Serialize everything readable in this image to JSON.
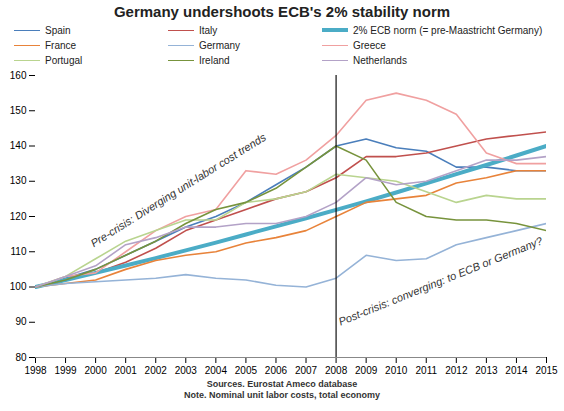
{
  "chart_data": {
    "type": "line",
    "title": "Germany undershoots ECB's 2% stability norm",
    "x": [
      1998,
      1999,
      2000,
      2001,
      2002,
      2003,
      2004,
      2005,
      2006,
      2007,
      2008,
      2009,
      2010,
      2011,
      2012,
      2013,
      2014,
      2015
    ],
    "xlim": [
      1998,
      2015
    ],
    "xticks": [
      1998,
      1999,
      2000,
      2001,
      2002,
      2003,
      2004,
      2005,
      2006,
      2007,
      2008,
      2009,
      2010,
      2011,
      2012,
      2013,
      2014,
      2015
    ],
    "ylim": [
      80,
      160
    ],
    "yticks": [
      80,
      90,
      100,
      110,
      120,
      130,
      140,
      150,
      160
    ],
    "grid": false,
    "legend": "top",
    "vertical_line_x": 2008,
    "annotations": [
      "Pre-crisis: Diverging unit-labor cost trends",
      "Post-crisis: converging: to ECB or Germany?"
    ],
    "sources": "Sources. Eurostat Ameco database",
    "note": "Note. Nominal unit labor costs, total economy",
    "series": [
      {
        "name": "Spain",
        "color": "#4a7ebb",
        "line_style": "solid",
        "values": [
          100,
          102.5,
          105,
          109,
          113,
          117,
          120,
          124,
          129,
          134,
          140,
          142,
          139.5,
          138.5,
          134,
          134,
          133,
          133
        ]
      },
      {
        "name": "Italy",
        "color": "#c0504d",
        "line_style": "solid",
        "values": [
          100,
          102,
          104,
          107,
          111,
          116,
          119,
          122,
          125,
          127,
          131,
          137,
          137,
          138,
          140,
          142,
          143,
          144
        ]
      },
      {
        "name": "2% ECB norm (= pre-Maastricht Germany)",
        "color": "#4bacc6",
        "line_style": "thick",
        "values": [
          100,
          102,
          104,
          106.1,
          108.2,
          110.4,
          112.6,
          114.9,
          117.2,
          119.5,
          121.9,
          124.3,
          126.8,
          129.4,
          132,
          134.6,
          137.3,
          140
        ]
      },
      {
        "name": "France",
        "color": "#e8833a",
        "line_style": "solid",
        "values": [
          100,
          101,
          102,
          105,
          107.5,
          109,
          110,
          112.5,
          114,
          116,
          120,
          124,
          125,
          126,
          129.5,
          131,
          133,
          133
        ]
      },
      {
        "name": "Germany",
        "color": "#95b3d7",
        "line_style": "solid",
        "values": [
          100,
          101,
          101.5,
          102,
          102.5,
          103.5,
          102.5,
          102,
          100.5,
          100,
          102.5,
          109,
          107.5,
          108,
          112,
          114,
          116,
          118
        ]
      },
      {
        "name": "Greece",
        "color": "#f0a0a0",
        "line_style": "solid",
        "values": [
          100,
          103,
          104,
          110,
          116,
          120,
          122,
          133,
          132,
          136,
          143,
          153,
          155,
          153,
          149,
          138,
          135,
          135
        ]
      },
      {
        "name": "Portugal",
        "color": "#b9d48f",
        "line_style": "solid",
        "values": [
          100,
          103,
          108,
          113,
          116,
          119,
          119,
          124,
          125,
          127,
          132,
          131,
          130,
          127,
          124,
          126,
          125,
          125
        ]
      },
      {
        "name": "Ireland",
        "color": "#77933c",
        "line_style": "solid",
        "values": [
          100,
          102,
          105,
          109,
          113,
          118,
          122,
          124,
          128,
          134,
          140,
          136,
          124,
          120,
          119,
          119,
          118,
          116
        ]
      },
      {
        "name": "Netherlands",
        "color": "#b3a2c7",
        "line_style": "solid",
        "values": [
          100,
          103,
          106,
          112,
          114,
          117,
          117,
          118,
          118,
          120,
          124,
          131,
          129,
          130,
          133,
          136,
          136,
          137
        ]
      }
    ]
  }
}
